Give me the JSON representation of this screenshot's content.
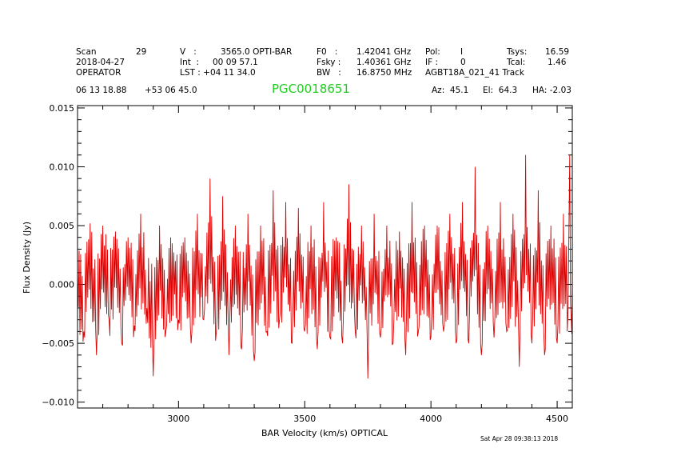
{
  "header": {
    "rows": [
      [
        "Scan",
        "29",
        "V   :",
        "3565.0 OPTI-BAR",
        "F0   :",
        "1.42041 GHz",
        "Pol:",
        "I",
        "Tsys:",
        "16.59"
      ],
      [
        "2018-04-27",
        "",
        "Int  :",
        "00 09 57.1",
        "Fsky :",
        "1.40361 GHz",
        "IF :",
        "0",
        "Tcal:",
        "1.46"
      ],
      [
        "OPERATOR",
        "",
        "LST : +04 11 34.0",
        "",
        "BW   :",
        "16.8750 MHz",
        "AGBT18A_021_41 Track",
        "",
        "",
        ""
      ]
    ],
    "ra": "06 13 18.88",
    "dec": "+53 06 45.0",
    "object": "PGC0018651",
    "az": "Az:  45.1",
    "el": "El:  64.3",
    "ha": "HA: -2.03"
  },
  "timestamp": "Sat Apr 28 09:38:13 2018",
  "colors": {
    "trace": "#dd0000",
    "object": "#22cc22",
    "axes": "#000000"
  },
  "chart_data": {
    "type": "line",
    "title": "PGC0018651",
    "xlabel": "BAR Velocity (km/s) OPTICAL",
    "ylabel": "Flux Density (Jy)",
    "xlim": [
      2600,
      4560
    ],
    "ylim": [
      -0.0105,
      0.0152
    ],
    "xticks": [
      3000,
      3500,
      4000,
      4500
    ],
    "xtick_labels": [
      "3000",
      "3500",
      "4000",
      "4500"
    ],
    "yticks": [
      -0.01,
      -0.005,
      0.0,
      0.005,
      0.01,
      0.015
    ],
    "ytick_labels": [
      "−0.010",
      "−0.005",
      "0.000",
      "0.005",
      "0.010",
      "0.015"
    ],
    "series": [
      {
        "x": [
          2600,
          2625,
          2650,
          2675,
          2700,
          2725,
          2750,
          2775,
          2800,
          2825,
          2850,
          2875,
          2900,
          2925,
          2950,
          2975,
          3000,
          3025,
          3050,
          3075,
          3100,
          3125,
          3150,
          3175,
          3200,
          3225,
          3250,
          3275,
          3300,
          3325,
          3350,
          3375,
          3400,
          3425,
          3450,
          3475,
          3500,
          3525,
          3550,
          3575,
          3600,
          3625,
          3650,
          3675,
          3700,
          3725,
          3750,
          3775,
          3800,
          3825,
          3850,
          3875,
          3900,
          3925,
          3950,
          3975,
          4000,
          4025,
          4050,
          4075,
          4100,
          4125,
          4150,
          4175,
          4200,
          4225,
          4250,
          4275,
          4300,
          4325,
          4350,
          4375,
          4400,
          4425,
          4450,
          4475,
          4500,
          4525,
          4540,
          4550,
          4556,
          4560
        ],
        "values": [
          0.001,
          -0.004,
          0.0052,
          -0.006,
          0.005,
          -0.003,
          0.0045,
          -0.005,
          0.004,
          -0.0035,
          0.006,
          -0.002,
          -0.0078,
          0.005,
          -0.004,
          0.0035,
          -0.003,
          0.004,
          -0.005,
          0.006,
          -0.003,
          0.009,
          -0.004,
          0.0075,
          -0.006,
          0.005,
          -0.0055,
          0.006,
          -0.0065,
          0.005,
          -0.004,
          0.008,
          -0.003,
          0.007,
          -0.005,
          0.0065,
          -0.004,
          0.005,
          -0.0055,
          0.007,
          -0.0045,
          0.004,
          -0.005,
          0.0085,
          -0.004,
          0.005,
          -0.008,
          0.006,
          -0.0045,
          0.005,
          -0.005,
          0.0045,
          -0.006,
          0.007,
          -0.004,
          0.005,
          -0.0045,
          0.005,
          -0.004,
          0.006,
          -0.005,
          0.007,
          -0.005,
          0.01,
          -0.006,
          0.005,
          -0.0045,
          0.007,
          -0.004,
          0.006,
          -0.007,
          0.011,
          -0.005,
          0.008,
          -0.006,
          0.005,
          -0.005,
          0.006,
          -0.004,
          0.011,
          -0.003,
          0.0005
        ]
      }
    ]
  }
}
